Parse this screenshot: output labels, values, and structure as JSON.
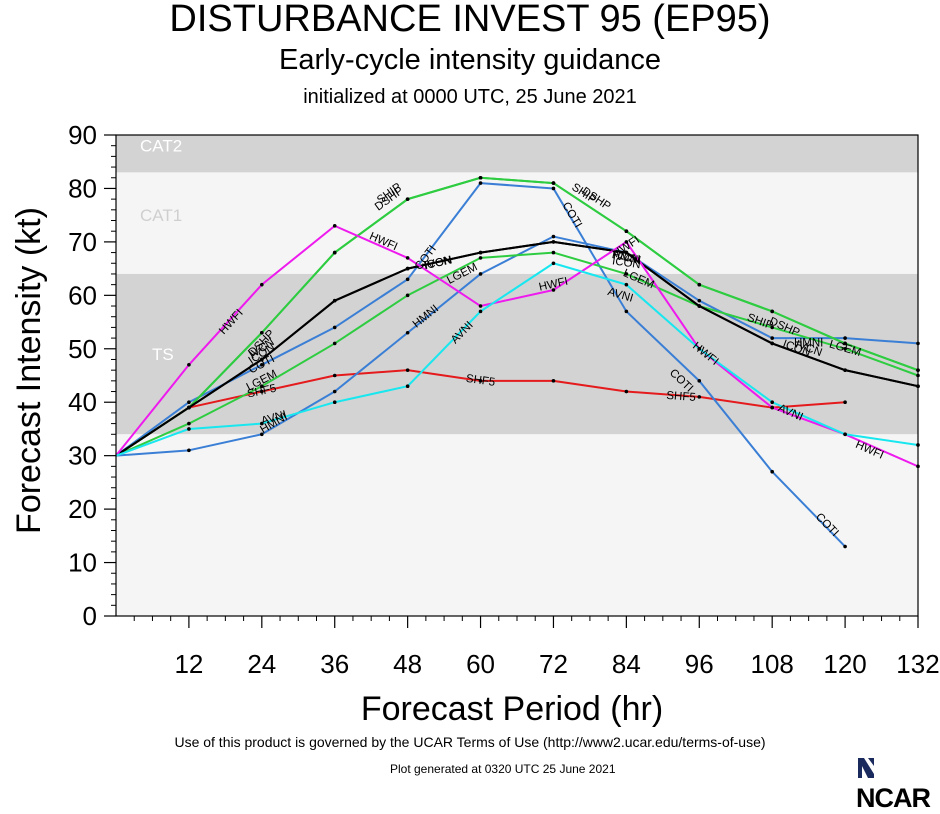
{
  "title": "DISTURBANCE INVEST 95 (EP95)",
  "subtitle": "Early-cycle intensity guidance",
  "initialized": "initialized at 0000 UTC, 25 June 2021",
  "footer_terms": "Use of this product is governed by the UCAR Terms of Use (http://www2.ucar.edu/terms-of-use)",
  "footer_generated": "Plot generated at 0320 UTC   25 June 2021",
  "logo_text": "NCAR",
  "chart_data": {
    "type": "line",
    "xlabel": "Forecast Period (hr)",
    "ylabel": "Forecast Intensity (kt)",
    "xlim": [
      0,
      132
    ],
    "ylim": [
      0,
      90
    ],
    "x_ticks": [
      12,
      24,
      36,
      48,
      60,
      72,
      84,
      96,
      108,
      120,
      132
    ],
    "y_ticks": [
      0,
      10,
      20,
      30,
      40,
      50,
      60,
      70,
      80,
      90
    ],
    "bands": [
      {
        "label": "CAT2",
        "from": 83,
        "to": 90,
        "color": "#d3d3d3"
      },
      {
        "label": "CAT1",
        "from": 64,
        "to": 83,
        "color": "#f5f5f5"
      },
      {
        "label": "TS",
        "from": 34,
        "to": 64,
        "color": "#d3d3d3"
      },
      {
        "label": "",
        "from": 0,
        "to": 34,
        "color": "#f5f5f5"
      }
    ],
    "series": [
      {
        "name": "SHF5",
        "color": "#e41a1c",
        "x": [
          0,
          12,
          24,
          36,
          48,
          60,
          72,
          84,
          96,
          108,
          120
        ],
        "values": [
          30,
          39,
          42,
          45,
          46,
          44,
          44,
          42,
          41,
          39,
          40
        ],
        "labels": [
          [
            24,
            42
          ],
          [
            60,
            44
          ],
          [
            93,
            41
          ]
        ]
      },
      {
        "name": "COTI",
        "color": "#3a7fd5",
        "x": [
          0,
          12,
          24,
          36,
          48,
          60,
          72,
          84,
          96,
          108,
          120
        ],
        "values": [
          30,
          40,
          47,
          54,
          63,
          81,
          80,
          57,
          44,
          27,
          13
        ],
        "labels": [
          [
            24,
            47
          ],
          [
            51,
            67
          ],
          [
            75,
            75
          ],
          [
            93,
            44
          ],
          [
            117,
            17
          ]
        ]
      },
      {
        "name": "HMNI",
        "color": "#3a7fd5",
        "x": [
          0,
          12,
          24,
          36,
          48,
          60,
          72,
          84,
          96,
          108,
          120,
          132
        ],
        "values": [
          30,
          31,
          34,
          42,
          53,
          64,
          71,
          68,
          59,
          52,
          52,
          51
        ],
        "labels": [
          [
            26,
            36
          ],
          [
            51,
            56
          ],
          [
            84,
            67
          ],
          [
            114,
            51
          ]
        ]
      },
      {
        "name": "DSHP",
        "color": "#2ecc40",
        "x": [
          0,
          12,
          24,
          36,
          48,
          60,
          72,
          84,
          96,
          108,
          120,
          132
        ],
        "values": [
          30,
          39,
          53,
          68,
          78,
          82,
          81,
          72,
          62,
          57,
          51,
          46
        ],
        "labels": [
          [
            24,
            51
          ],
          [
            45,
            78
          ],
          [
            79,
            78
          ],
          [
            110,
            54
          ]
        ]
      },
      {
        "name": "SHIP",
        "color": "#2ecc40",
        "x": [
          0,
          12,
          24,
          36,
          48,
          60,
          72,
          84,
          96,
          108,
          120,
          132
        ],
        "values": [
          30,
          39,
          53,
          68,
          78,
          82,
          81,
          72,
          62,
          57,
          51,
          46
        ],
        "labels": [
          [
            45,
            79
          ],
          [
            77,
            79
          ],
          [
            106,
            55
          ]
        ]
      },
      {
        "name": "LGEM",
        "color": "#2ecc40",
        "x": [
          0,
          12,
          24,
          36,
          48,
          60,
          72,
          84,
          96,
          108,
          120,
          132
        ],
        "values": [
          30,
          36,
          43,
          51,
          60,
          67,
          68,
          64,
          58,
          54,
          50,
          45
        ],
        "labels": [
          [
            24,
            44
          ],
          [
            57,
            64
          ],
          [
            86,
            63
          ],
          [
            120,
            50
          ]
        ]
      },
      {
        "name": "ICON",
        "color": "#000000",
        "x": [
          0,
          12,
          24,
          36,
          48,
          60,
          72,
          84,
          96,
          108,
          120,
          132
        ],
        "values": [
          30,
          39,
          48,
          59,
          65,
          68,
          70,
          68,
          58,
          51,
          46,
          43
        ],
        "labels": [
          [
            24,
            49
          ],
          [
            53,
            66
          ],
          [
            84,
            66
          ],
          [
            112,
            50
          ]
        ]
      },
      {
        "name": "IVCN",
        "color": "#000000",
        "x": [
          0,
          12,
          24,
          36,
          48,
          60,
          72,
          84,
          96,
          108,
          120,
          132
        ],
        "values": [
          30,
          39,
          48,
          59,
          65,
          68,
          70,
          68,
          58,
          51,
          46,
          43
        ],
        "labels": [
          [
            24,
            50
          ],
          [
            53,
            66
          ],
          [
            84,
            67
          ],
          [
            114,
            50
          ]
        ]
      },
      {
        "name": "HWFI",
        "color": "#ee1aee",
        "x": [
          0,
          12,
          24,
          36,
          48,
          60,
          72,
          84,
          96,
          108,
          120,
          132
        ],
        "values": [
          30,
          47,
          62,
          73,
          67,
          58,
          61,
          70,
          50,
          39,
          34,
          28
        ],
        "labels": [
          [
            19,
            55
          ],
          [
            44,
            70
          ],
          [
            72,
            62
          ],
          [
            84,
            69
          ],
          [
            97,
            49
          ],
          [
            124,
            31
          ]
        ]
      },
      {
        "name": "AVNI",
        "color": "#18e7ef",
        "x": [
          0,
          12,
          24,
          36,
          48,
          60,
          72,
          84,
          96,
          108,
          120,
          132
        ],
        "values": [
          30,
          35,
          36,
          40,
          43,
          57,
          66,
          62,
          50,
          40,
          34,
          32
        ],
        "labels": [
          [
            26,
            37
          ],
          [
            57,
            53
          ],
          [
            83,
            60
          ],
          [
            111,
            38
          ]
        ]
      }
    ]
  }
}
